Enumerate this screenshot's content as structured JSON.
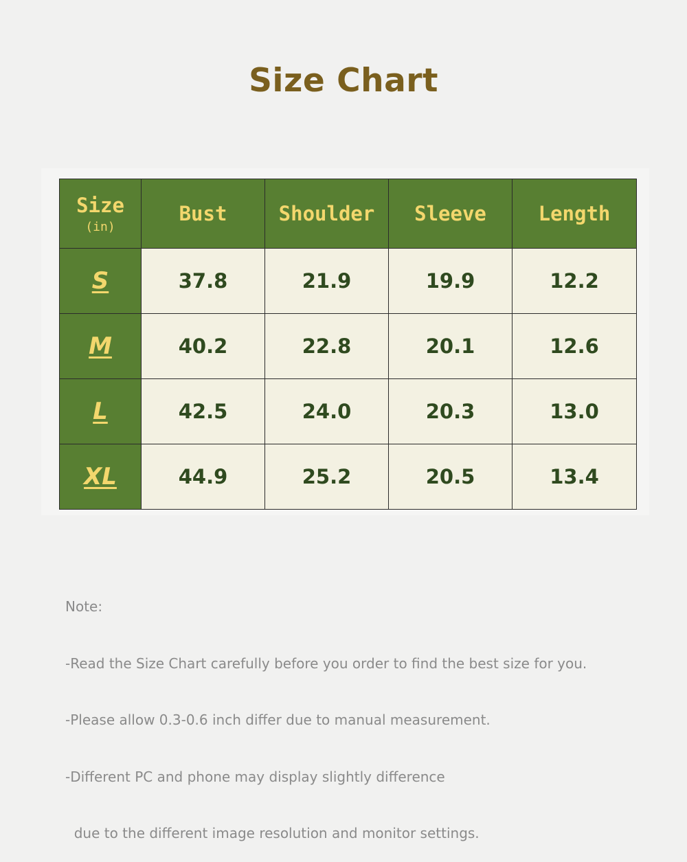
{
  "title": "Size Chart",
  "colors": {
    "header_bg": "#587f32",
    "header_text": "#f3d76d",
    "cell_bg": "#f3f1e2",
    "cell_text": "#2f4a1f",
    "title": "#7a5f1e",
    "note": "#8a8a8a"
  },
  "table": {
    "headers": [
      {
        "main": "Size",
        "sub": "(in)"
      },
      {
        "main": "Bust"
      },
      {
        "main": "Shoulder"
      },
      {
        "main": "Sleeve"
      },
      {
        "main": "Length"
      }
    ],
    "rows": [
      {
        "size": "S",
        "values": [
          "37.8",
          "21.9",
          "19.9",
          "12.2"
        ]
      },
      {
        "size": "M",
        "values": [
          "40.2",
          "22.8",
          "20.1",
          "12.6"
        ]
      },
      {
        "size": "L",
        "values": [
          "42.5",
          "24.0",
          "20.3",
          "13.0"
        ]
      },
      {
        "size": "XL",
        "values": [
          "44.9",
          "25.2",
          "20.5",
          "13.4"
        ]
      }
    ]
  },
  "note": {
    "lines": [
      "Note:",
      "-Read the Size Chart carefully before you order to find the best size for you.",
      "-Please allow 0.3-0.6 inch differ due to manual measurement.",
      "-Different PC and phone may display slightly difference",
      "  due to the different image resolution and monitor settings."
    ]
  }
}
